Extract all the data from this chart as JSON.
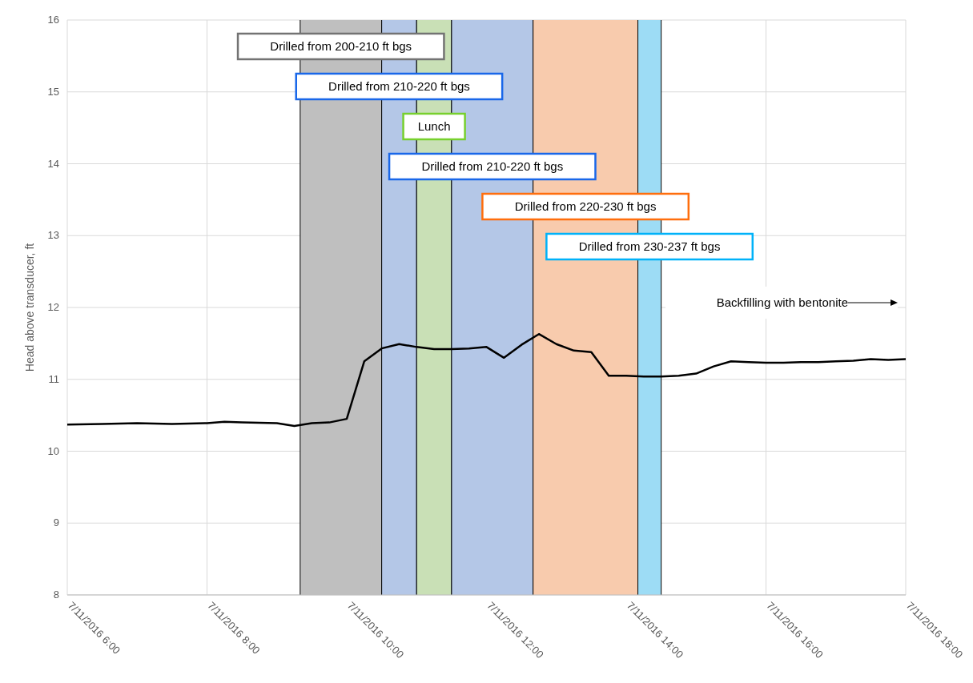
{
  "chart_data": {
    "type": "line",
    "ylabel": "Head above transducer, ft",
    "x": [
      "2016-07-11T06:00",
      "2016-07-11T06:30",
      "2016-07-11T07:00",
      "2016-07-11T07:30",
      "2016-07-11T08:00",
      "2016-07-11T08:15",
      "2016-07-11T08:30",
      "2016-07-11T09:00",
      "2016-07-11T09:15",
      "2016-07-11T09:30",
      "2016-07-11T09:45",
      "2016-07-11T10:00",
      "2016-07-11T10:15",
      "2016-07-11T10:30",
      "2016-07-11T10:45",
      "2016-07-11T11:00",
      "2016-07-11T11:15",
      "2016-07-11T11:30",
      "2016-07-11T11:45",
      "2016-07-11T12:00",
      "2016-07-11T12:15",
      "2016-07-11T12:30",
      "2016-07-11T12:45",
      "2016-07-11T13:00",
      "2016-07-11T13:15",
      "2016-07-11T13:30",
      "2016-07-11T13:45",
      "2016-07-11T14:00",
      "2016-07-11T14:15",
      "2016-07-11T14:30",
      "2016-07-11T14:45",
      "2016-07-11T15:00",
      "2016-07-11T15:15",
      "2016-07-11T15:30",
      "2016-07-11T15:45",
      "2016-07-11T16:00",
      "2016-07-11T16:15",
      "2016-07-11T16:30",
      "2016-07-11T16:45",
      "2016-07-11T17:00",
      "2016-07-11T17:15",
      "2016-07-11T17:30",
      "2016-07-11T17:45",
      "2016-07-11T18:00"
    ],
    "series": [
      {
        "color": "#000000",
        "values": [
          10.37,
          10.38,
          10.39,
          10.38,
          10.39,
          10.41,
          10.4,
          10.39,
          10.35,
          10.39,
          10.4,
          10.45,
          11.25,
          11.43,
          11.49,
          11.45,
          11.42,
          11.42,
          11.43,
          11.45,
          11.3,
          11.48,
          11.63,
          11.49,
          11.4,
          11.38,
          11.05,
          11.05,
          11.04,
          11.04,
          11.05,
          11.08,
          11.18,
          11.25,
          11.24,
          11.23,
          11.23,
          11.24,
          11.24,
          11.25,
          11.26,
          11.28,
          11.27,
          11.28
        ]
      }
    ],
    "xlim": [
      "2016-07-11T06:00",
      "2016-07-11T18:00"
    ],
    "xticks": [
      {
        "value": "2016-07-11T06:00",
        "label": "7/11/2016 6:00"
      },
      {
        "value": "2016-07-11T08:00",
        "label": "7/11/2016 8:00"
      },
      {
        "value": "2016-07-11T10:00",
        "label": "7/11/2016 10:00"
      },
      {
        "value": "2016-07-11T12:00",
        "label": "7/11/2016 12:00"
      },
      {
        "value": "2016-07-11T14:00",
        "label": "7/11/2016 14:00"
      },
      {
        "value": "2016-07-11T16:00",
        "label": "7/11/2016 16:00"
      },
      {
        "value": "2016-07-11T18:00",
        "label": "7/11/2016 18:00"
      }
    ],
    "ylim": [
      8,
      16
    ],
    "yticks": [
      8,
      9,
      10,
      11,
      12,
      13,
      14,
      15,
      16
    ],
    "grid": true,
    "bands": [
      {
        "axis": "x",
        "from": "2016-07-11T09:20",
        "to": "2016-07-11T10:30",
        "label": "Drilled from 200-210 ft bgs",
        "color": "#bfbfbf"
      },
      {
        "axis": "x",
        "from": "2016-07-11T10:30",
        "to": "2016-07-11T11:00",
        "label": "Drilled from 210-220 ft bgs",
        "color": "#b4c7e7"
      },
      {
        "axis": "x",
        "from": "2016-07-11T11:00",
        "to": "2016-07-11T11:30",
        "label": "Lunch",
        "color": "#c9e0b6"
      },
      {
        "axis": "x",
        "from": "2016-07-11T11:30",
        "to": "2016-07-11T12:40",
        "label": "Drilled from 210-220 ft bgs",
        "color": "#b4c7e7"
      },
      {
        "axis": "x",
        "from": "2016-07-11T12:40",
        "to": "2016-07-11T14:10",
        "label": "Drilled from 220-230 ft bgs",
        "color": "#f8cbad"
      },
      {
        "axis": "x",
        "from": "2016-07-11T14:10",
        "to": "2016-07-11T14:30",
        "label": "Drilled from 230-237 ft bgs",
        "color": "#9ddcf5"
      }
    ],
    "annotations": [
      "Backfilling with bentonite"
    ]
  }
}
